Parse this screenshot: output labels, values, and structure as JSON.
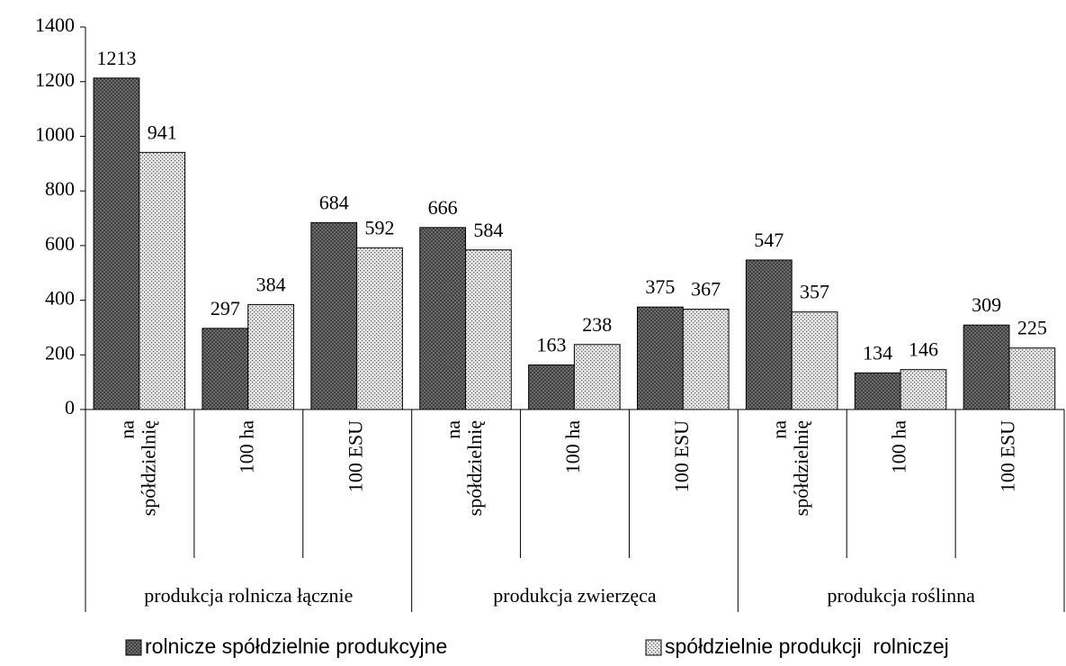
{
  "chart_data": {
    "type": "bar",
    "groups": [
      "produkcja rolnicza łącznie",
      "produkcja zwierzęca",
      "produkcja roślinna"
    ],
    "categories": [
      "na\nspółdzielnię",
      "100 ha",
      "100 ESU",
      "na\nspółdzielnię",
      "100 ha",
      "100 ESU",
      "na\nspółdzielnię",
      "100 ha",
      "100 ESU"
    ],
    "series": [
      {
        "name": "rolnicze spółdzielnie produkcyjne",
        "color": "#7a7a7a",
        "values": [
          1213,
          297,
          684,
          666,
          163,
          375,
          547,
          134,
          309
        ]
      },
      {
        "name": "spółdzielnie produkcji  rolniczej",
        "color": "#e8e8e8",
        "values": [
          941,
          384,
          592,
          584,
          238,
          367,
          357,
          146,
          225
        ]
      }
    ],
    "ylim": [
      0,
      1400
    ],
    "yticks": [
      0,
      200,
      400,
      600,
      800,
      1000,
      1200,
      1400
    ]
  }
}
